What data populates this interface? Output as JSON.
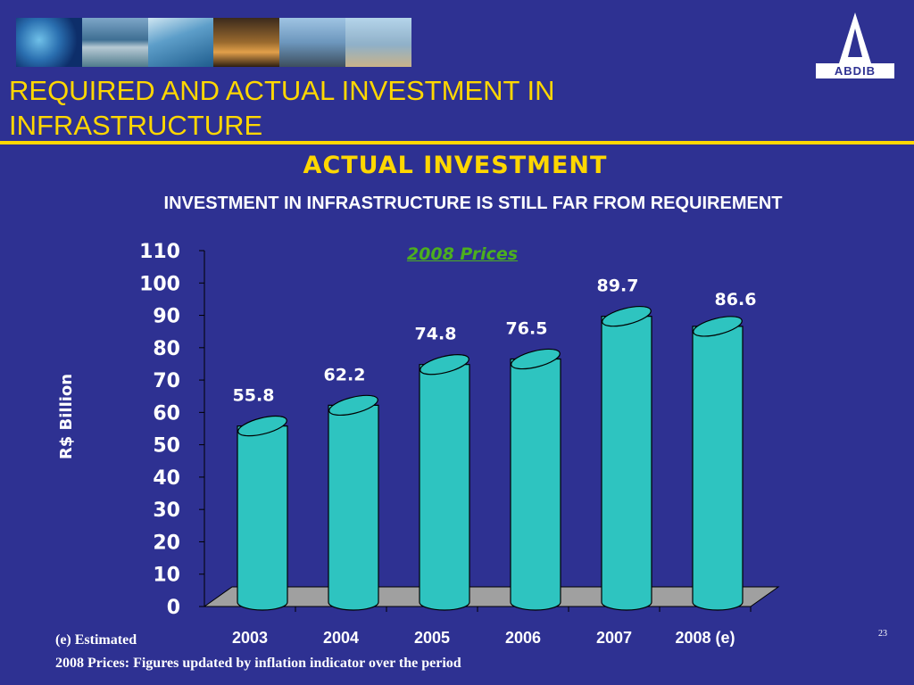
{
  "header": {
    "title": "REQUIRED AND ACTUAL INVESTMENT IN INFRASTRUCTURE",
    "logo_text": "ABDIB",
    "photos": [
      "globe-photo",
      "water-treatment-photo",
      "waves-photo",
      "refinery-photo",
      "industrial-plant-photo",
      "satellite-dish-photo"
    ]
  },
  "section_title": "ACTUAL INVESTMENT",
  "chart_subtitle": "INVESTMENT IN INFRASTRUCTURE IS STILL FAR FROM REQUIREMENT",
  "price_basis": "2008 Prices",
  "chart_data": {
    "type": "bar",
    "title": "INVESTMENT IN INFRASTRUCTURE IS STILL FAR FROM REQUIREMENT",
    "subtitle": "2008 Prices",
    "ylabel": "R$ Billion",
    "xlabel": "",
    "categories": [
      "2003",
      "2004",
      "2005",
      "2006",
      "2007",
      "2008 (e)"
    ],
    "values": [
      55.8,
      62.2,
      74.8,
      76.5,
      89.7,
      86.6
    ],
    "data_labels": [
      "55.8",
      "62.2",
      "74.8",
      "76.5",
      "89.7",
      "86.6"
    ],
    "ylim": [
      0,
      110
    ],
    "yticks": [
      0,
      10,
      20,
      30,
      40,
      50,
      60,
      70,
      80,
      90,
      100,
      110
    ],
    "grid": false,
    "bar_color": "#2ec4c0",
    "floor_color": "#a0a0a0"
  },
  "footnotes": {
    "estimated": "(e) Estimated",
    "prices": "2008 Prices: Figures updated by inflation indicator over the period"
  },
  "page_number": "23",
  "colors": {
    "background": "#2e3192",
    "accent": "#ffd700",
    "price_basis": "#4caf1f"
  }
}
